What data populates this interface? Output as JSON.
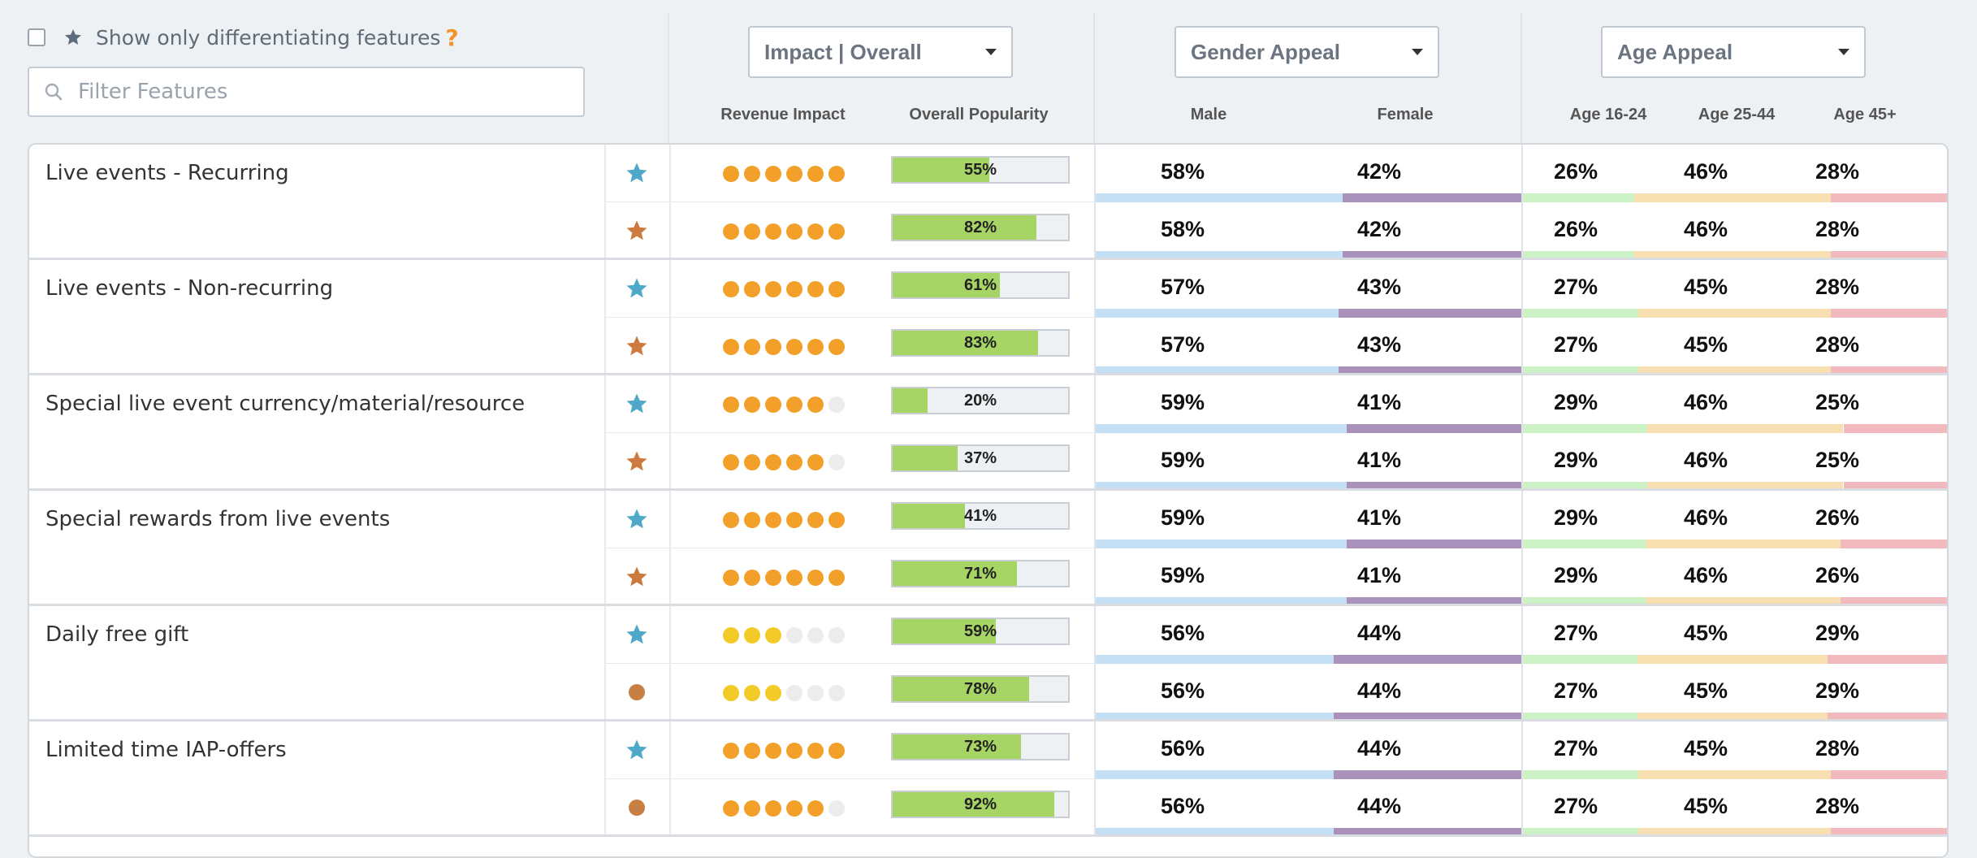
{
  "toolbar": {
    "differentiating_label": "Show only differentiating features",
    "help_mark": "?",
    "filter_placeholder": "Filter Features",
    "impact_dropdown": "Impact | Overall",
    "gender_dropdown": "Gender Appeal",
    "age_dropdown": "Age Appeal"
  },
  "columns": {
    "revenue_impact": "Revenue Impact",
    "overall_popularity": "Overall Popularity",
    "male": "Male",
    "female": "Female",
    "age_16_24": "Age 16-24",
    "age_25_44": "Age 25-44",
    "age_45": "Age 45+"
  },
  "colors": {
    "star_blue": "#4fa8c7",
    "star_orange": "#cc7a3e",
    "dot_orange": "#f2a02a",
    "dot_yellow": "#f3cb28",
    "dot_empty": "#ececec",
    "popularity_fill": "#a6d565",
    "male_bar": "#c5dff4",
    "female_bar": "#a992bb",
    "age1_bar": "#ccf1c5",
    "age2_bar": "#f8dfb2",
    "age3_bar": "#f2b9be"
  },
  "features": [
    {
      "name": "Live events - Recurring",
      "rows": [
        {
          "icon": "star-blue",
          "impact": 6,
          "impact_color": "orange",
          "popularity": "55%",
          "popularity_value": 55,
          "male": "58%",
          "male_value": 58,
          "female": "42%",
          "female_value": 42,
          "age_16_24": "26%",
          "age_16_24_value": 26,
          "age_25_44": "46%",
          "age_25_44_value": 46,
          "age_45": "28%",
          "age_45_value": 28
        },
        {
          "icon": "star-orange",
          "impact": 6,
          "impact_color": "orange",
          "popularity": "82%",
          "popularity_value": 82,
          "male": "58%",
          "male_value": 58,
          "female": "42%",
          "female_value": 42,
          "age_16_24": "26%",
          "age_16_24_value": 26,
          "age_25_44": "46%",
          "age_25_44_value": 46,
          "age_45": "28%",
          "age_45_value": 28
        }
      ]
    },
    {
      "name": "Live events - Non-recurring",
      "rows": [
        {
          "icon": "star-blue",
          "impact": 6,
          "impact_color": "orange",
          "popularity": "61%",
          "popularity_value": 61,
          "male": "57%",
          "male_value": 57,
          "female": "43%",
          "female_value": 43,
          "age_16_24": "27%",
          "age_16_24_value": 27,
          "age_25_44": "45%",
          "age_25_44_value": 45,
          "age_45": "28%",
          "age_45_value": 28
        },
        {
          "icon": "star-orange",
          "impact": 6,
          "impact_color": "orange",
          "popularity": "83%",
          "popularity_value": 83,
          "male": "57%",
          "male_value": 57,
          "female": "43%",
          "female_value": 43,
          "age_16_24": "27%",
          "age_16_24_value": 27,
          "age_25_44": "45%",
          "age_25_44_value": 45,
          "age_45": "28%",
          "age_45_value": 28
        }
      ]
    },
    {
      "name": "Special live event currency/material/resource",
      "rows": [
        {
          "icon": "star-blue",
          "impact": 5,
          "impact_color": "orange",
          "popularity": "20%",
          "popularity_value": 20,
          "male": "59%",
          "male_value": 59,
          "female": "41%",
          "female_value": 41,
          "age_16_24": "29%",
          "age_16_24_value": 29,
          "age_25_44": "46%",
          "age_25_44_value": 46,
          "age_45": "25%",
          "age_45_value": 25
        },
        {
          "icon": "star-orange",
          "impact": 5,
          "impact_color": "orange",
          "popularity": "37%",
          "popularity_value": 37,
          "male": "59%",
          "male_value": 59,
          "female": "41%",
          "female_value": 41,
          "age_16_24": "29%",
          "age_16_24_value": 29,
          "age_25_44": "46%",
          "age_25_44_value": 46,
          "age_45": "25%",
          "age_45_value": 25
        }
      ]
    },
    {
      "name": "Special rewards from live events",
      "rows": [
        {
          "icon": "star-blue",
          "impact": 6,
          "impact_color": "orange",
          "popularity": "41%",
          "popularity_value": 41,
          "male": "59%",
          "male_value": 59,
          "female": "41%",
          "female_value": 41,
          "age_16_24": "29%",
          "age_16_24_value": 29,
          "age_25_44": "46%",
          "age_25_44_value": 46,
          "age_45": "26%",
          "age_45_value": 26
        },
        {
          "icon": "star-orange",
          "impact": 6,
          "impact_color": "orange",
          "popularity": "71%",
          "popularity_value": 71,
          "male": "59%",
          "male_value": 59,
          "female": "41%",
          "female_value": 41,
          "age_16_24": "29%",
          "age_16_24_value": 29,
          "age_25_44": "46%",
          "age_25_44_value": 46,
          "age_45": "26%",
          "age_45_value": 26
        }
      ]
    },
    {
      "name": "Daily free gift",
      "rows": [
        {
          "icon": "star-blue",
          "impact": 3,
          "impact_color": "yellow",
          "popularity": "59%",
          "popularity_value": 59,
          "male": "56%",
          "male_value": 56,
          "female": "44%",
          "female_value": 44,
          "age_16_24": "27%",
          "age_16_24_value": 27,
          "age_25_44": "45%",
          "age_25_44_value": 45,
          "age_45": "29%",
          "age_45_value": 29
        },
        {
          "icon": "dot-orange",
          "impact": 3,
          "impact_color": "yellow",
          "popularity": "78%",
          "popularity_value": 78,
          "male": "56%",
          "male_value": 56,
          "female": "44%",
          "female_value": 44,
          "age_16_24": "27%",
          "age_16_24_value": 27,
          "age_25_44": "45%",
          "age_25_44_value": 45,
          "age_45": "29%",
          "age_45_value": 29
        }
      ]
    },
    {
      "name": "Limited time IAP-offers",
      "rows": [
        {
          "icon": "star-blue",
          "impact": 6,
          "impact_color": "orange",
          "popularity": "73%",
          "popularity_value": 73,
          "male": "56%",
          "male_value": 56,
          "female": "44%",
          "female_value": 44,
          "age_16_24": "27%",
          "age_16_24_value": 27,
          "age_25_44": "45%",
          "age_25_44_value": 45,
          "age_45": "28%",
          "age_45_value": 28
        },
        {
          "icon": "dot-orange",
          "impact": 5,
          "impact_color": "orange",
          "popularity": "92%",
          "popularity_value": 92,
          "male": "56%",
          "male_value": 56,
          "female": "44%",
          "female_value": 44,
          "age_16_24": "27%",
          "age_16_24_value": 27,
          "age_25_44": "45%",
          "age_25_44_value": 45,
          "age_45": "28%",
          "age_45_value": 28
        }
      ]
    }
  ]
}
